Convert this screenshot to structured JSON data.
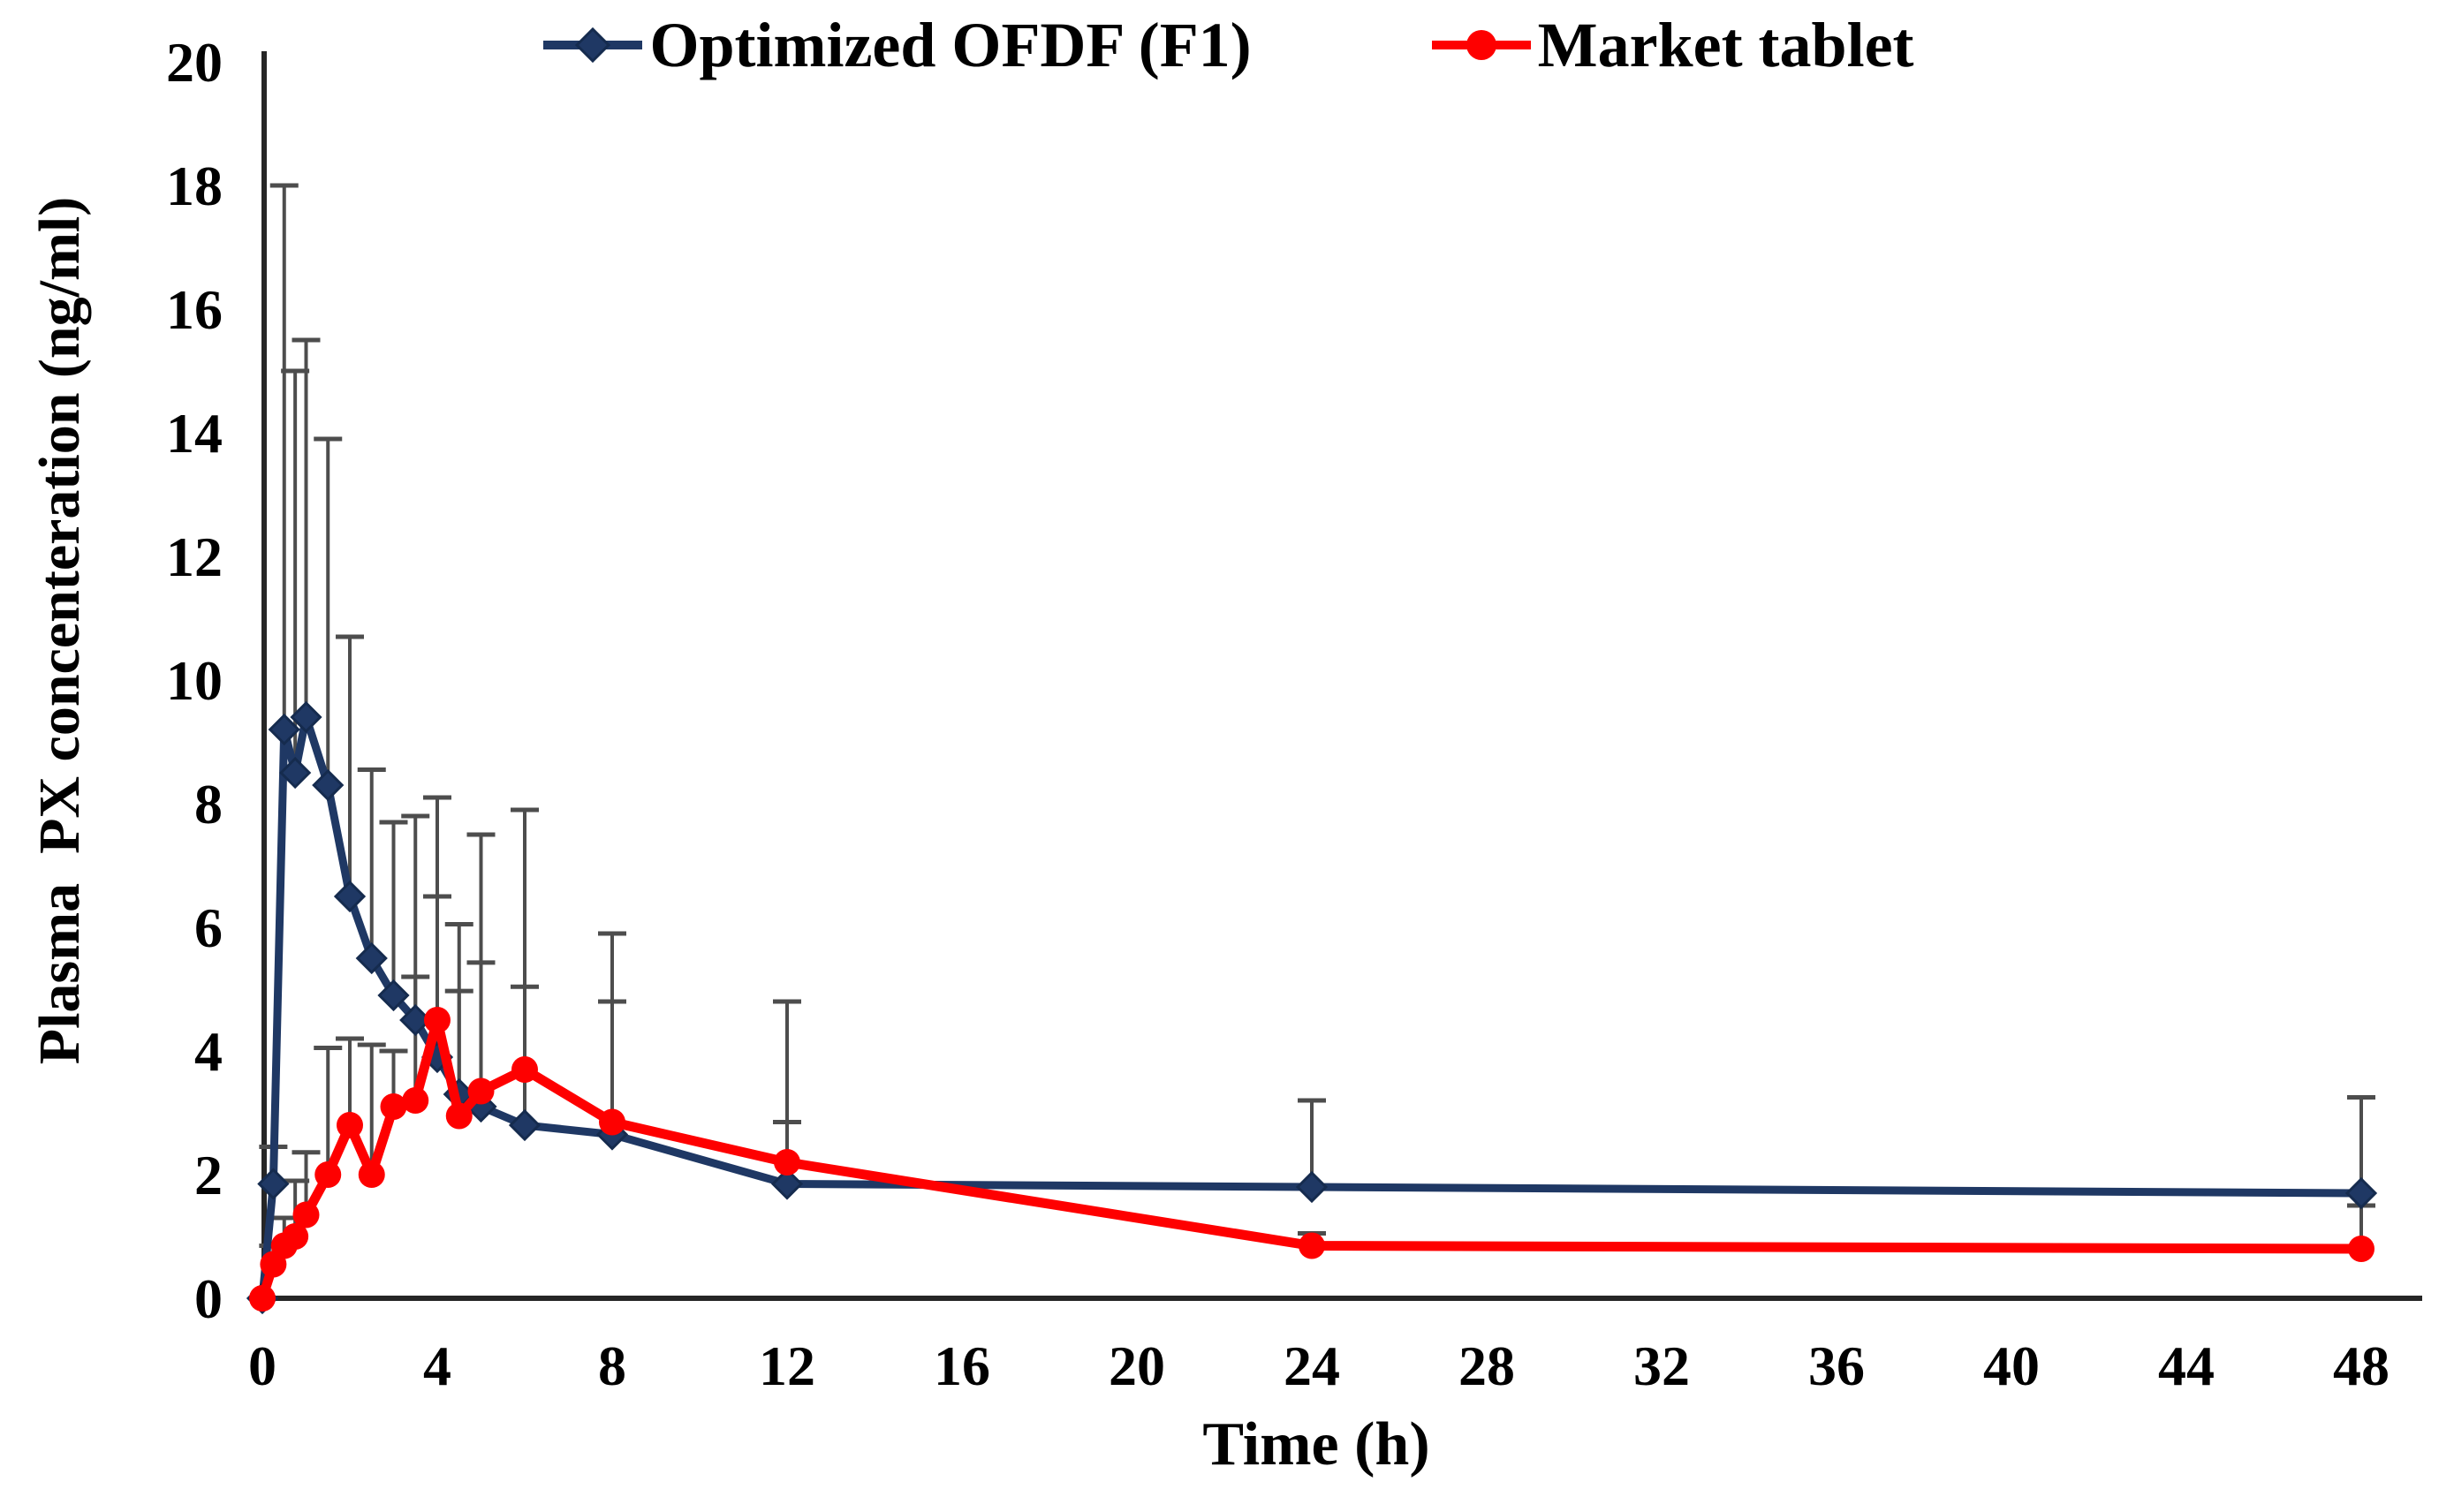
{
  "page": {
    "background": "#ffffff",
    "text_color": "#000000"
  },
  "chart_data": {
    "type": "line",
    "title": "",
    "xlabel": "Time (h)",
    "ylabel": "Plasma  PX concenteration (ng/ml)",
    "xlim": [
      0,
      48
    ],
    "ylim": [
      0,
      20
    ],
    "x_ticks": [
      0,
      4,
      8,
      12,
      16,
      20,
      24,
      28,
      32,
      36,
      40,
      44,
      48
    ],
    "y_ticks": [
      0,
      2,
      4,
      6,
      8,
      10,
      12,
      14,
      16,
      18,
      20
    ],
    "grid": false,
    "legend_position": "top-center",
    "error_bar_color": "#4d4d4d",
    "axis_color": "#262626",
    "x": [
      0,
      0.25,
      0.5,
      0.75,
      1,
      1.5,
      2,
      2.5,
      3,
      3.5,
      4,
      4.5,
      5,
      6,
      8,
      12,
      24,
      48
    ],
    "series": [
      {
        "name": "Optimized OFDF (F1)",
        "color": "#1f3864",
        "marker": "diamond",
        "values": [
          0,
          1.85,
          9.2,
          8.5,
          9.4,
          8.3,
          6.5,
          5.5,
          4.9,
          4.5,
          3.9,
          3.3,
          3.1,
          2.8,
          2.65,
          1.85,
          1.8,
          1.7
        ],
        "error_upper_top": [
          null,
          2.45,
          18.0,
          15.0,
          15.5,
          13.9,
          10.7,
          8.55,
          7.7,
          7.8,
          8.1,
          6.05,
          7.5,
          7.9,
          5.9,
          4.8,
          3.2,
          3.25
        ]
      },
      {
        "name": "Market tablet",
        "color": "#fe0000",
        "marker": "circle",
        "values": [
          0,
          0.55,
          0.85,
          1.0,
          1.35,
          2.0,
          2.8,
          2.0,
          3.1,
          3.2,
          4.5,
          2.95,
          3.35,
          3.7,
          2.85,
          2.2,
          0.85,
          0.8
        ],
        "error_upper_top": [
          null,
          0.85,
          1.3,
          1.9,
          2.36,
          4.05,
          4.2,
          4.1,
          4.0,
          5.2,
          6.5,
          4.97,
          5.43,
          5.04,
          4.8,
          2.85,
          1.05,
          1.5
        ]
      }
    ]
  }
}
